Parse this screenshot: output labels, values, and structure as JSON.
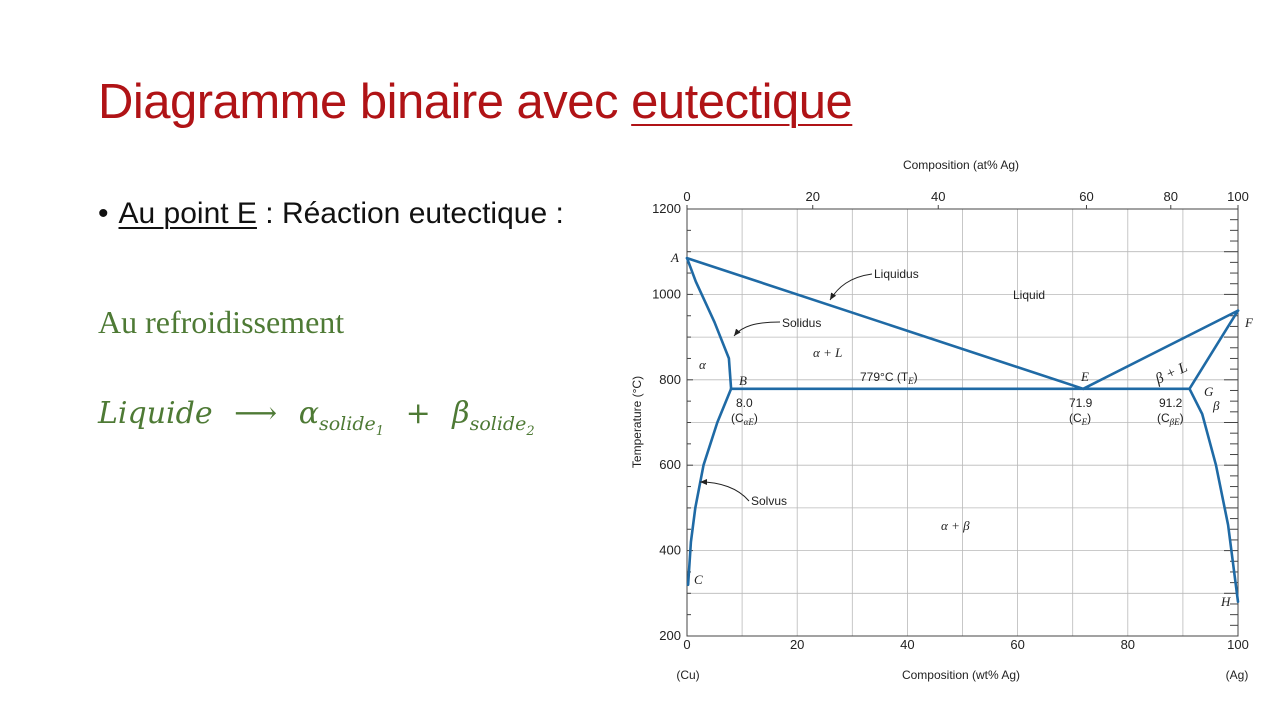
{
  "slide": {
    "title_part1": "Diagramme binaire avec ",
    "title_part2": "eutectique",
    "bullet_underlined": "Au point E",
    "bullet_rest": " : Réaction eutectique :",
    "subheading": "Au refroidissement",
    "equation": {
      "lhs": "Liquide",
      "arrow": "⟶",
      "alpha": "α",
      "alpha_sub": "solide",
      "alpha_subsub": "1",
      "plus": "+",
      "beta": "β",
      "beta_sub": "solide",
      "beta_subsub": "2"
    }
  },
  "diagram": {
    "top_axis_title": "Composition (at% Ag)",
    "top_ticks": [
      {
        "x": 0,
        "label": "0"
      },
      {
        "x": 22.82,
        "label": "20"
      },
      {
        "x": 45.6,
        "label": "40"
      },
      {
        "x": 72.5,
        "label": "60"
      },
      {
        "x": 87.8,
        "label": "80"
      },
      {
        "x": 100,
        "label": "100"
      }
    ],
    "bottom_axis_title": "Composition (wt% Ag)",
    "bottom_ticks": [
      "0",
      "20",
      "40",
      "60",
      "80",
      "100"
    ],
    "bottom_left_label": "(Cu)",
    "bottom_right_label": "(Ag)",
    "y_axis_title": "Temperature (°C)",
    "y_ticks": [
      "200",
      "400",
      "600",
      "800",
      "1000",
      "1200"
    ],
    "x_range": [
      0,
      100
    ],
    "y_range": [
      200,
      1200
    ],
    "grid": true,
    "lines": {
      "liquidus_left": [
        [
          0,
          1085
        ],
        [
          71.9,
          779
        ]
      ],
      "liquidus_right": [
        [
          71.9,
          779
        ],
        [
          100,
          962
        ]
      ],
      "eutectic_isotherm": [
        [
          8.0,
          779
        ],
        [
          91.2,
          779
        ]
      ],
      "solidus_left": [
        [
          0,
          1085
        ],
        [
          1.6,
          1030
        ],
        [
          5.0,
          935
        ],
        [
          7.6,
          850
        ],
        [
          8.0,
          779
        ]
      ],
      "solidus_right": [
        [
          100,
          962
        ],
        [
          91.2,
          779
        ]
      ],
      "solvus_left": [
        [
          8.0,
          779
        ],
        [
          5.5,
          700
        ],
        [
          3.0,
          600
        ],
        [
          1.5,
          500
        ],
        [
          0.7,
          420
        ],
        [
          0.2,
          320
        ]
      ],
      "solvus_right": [
        [
          91.2,
          779
        ],
        [
          93.5,
          720
        ],
        [
          96.0,
          600
        ],
        [
          98.2,
          460
        ],
        [
          99.4,
          340
        ],
        [
          100,
          280
        ]
      ]
    },
    "points": {
      "A": "A",
      "B": "B",
      "C": "C",
      "E": "E",
      "F": "F",
      "G": "G",
      "H": "H"
    },
    "region_labels": {
      "liquid": "Liquid",
      "alpha": "α",
      "alpha_plus_L": "α + L",
      "beta": "β",
      "beta_plus_L": "β + L",
      "alpha_plus_beta": "α + β"
    },
    "annotations": {
      "liquidus": "Liquidus",
      "solidus": "Solidus",
      "solvus": "Solvus",
      "te_value": "779°C",
      "te_symbol": "(T",
      "te_sub": "E",
      "te_close": ")",
      "b_value": "8.0",
      "b_symbol": "(C",
      "b_sub": "αE",
      "b_close": ")",
      "e_value": "71.9",
      "e_symbol": "(C",
      "e_sub": "E",
      "e_close": ")",
      "g_value": "91.2",
      "g_symbol": "(C",
      "g_sub": "βE",
      "g_close": ")"
    },
    "colors": {
      "curve": "#1f6aa5",
      "grid": "#b9b9b9",
      "title": "#b01316",
      "green_text": "#4e7a35"
    }
  }
}
